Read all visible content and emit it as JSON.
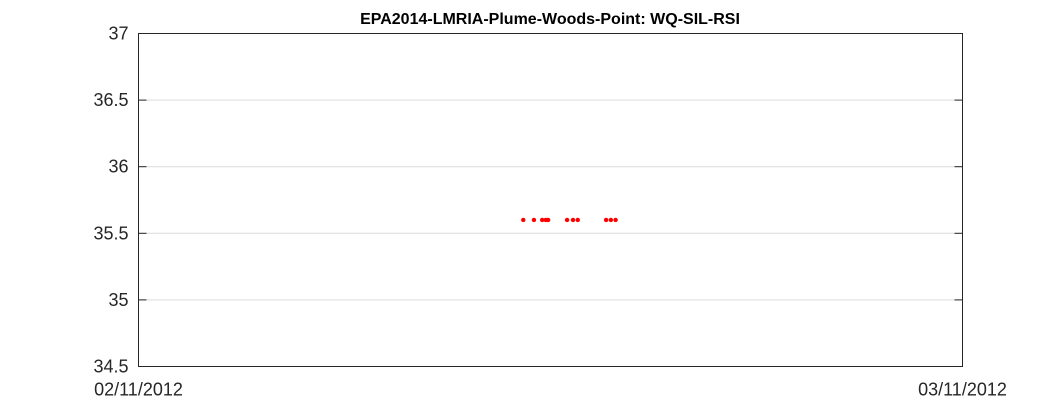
{
  "chart_data": {
    "type": "scatter",
    "title": "EPA2014-LMRIA-Plume-Woods-Point: WQ-SIL-RSI",
    "xlabel": "",
    "ylabel": "",
    "x_tick_labels": [
      "02/11/2012",
      "03/11/2012"
    ],
    "y_tick_labels": [
      "34.5",
      "35",
      "35.5",
      "36",
      "36.5",
      "37"
    ],
    "y_ticks": [
      34.5,
      35,
      35.5,
      36,
      36.5,
      37
    ],
    "xlim": [
      "2012-02-11",
      "2012-03-11"
    ],
    "ylim": [
      34.5,
      37
    ],
    "grid": "horizontal",
    "marker_color": "#ff0000",
    "series": [
      {
        "x": [
          "2012-02-24 13:00",
          "2012-02-24 22:00",
          "2012-02-25 05:00",
          "2012-02-25 08:00",
          "2012-02-25 10:00",
          "2012-02-26 02:00",
          "2012-02-26 07:00",
          "2012-02-26 11:00",
          "2012-02-27 11:00",
          "2012-02-27 15:00",
          "2012-02-27 19:00"
        ],
        "y": [
          35.6,
          35.6,
          35.6,
          35.6,
          35.6,
          35.6,
          35.6,
          35.6,
          35.6,
          35.6,
          35.6
        ]
      }
    ]
  }
}
